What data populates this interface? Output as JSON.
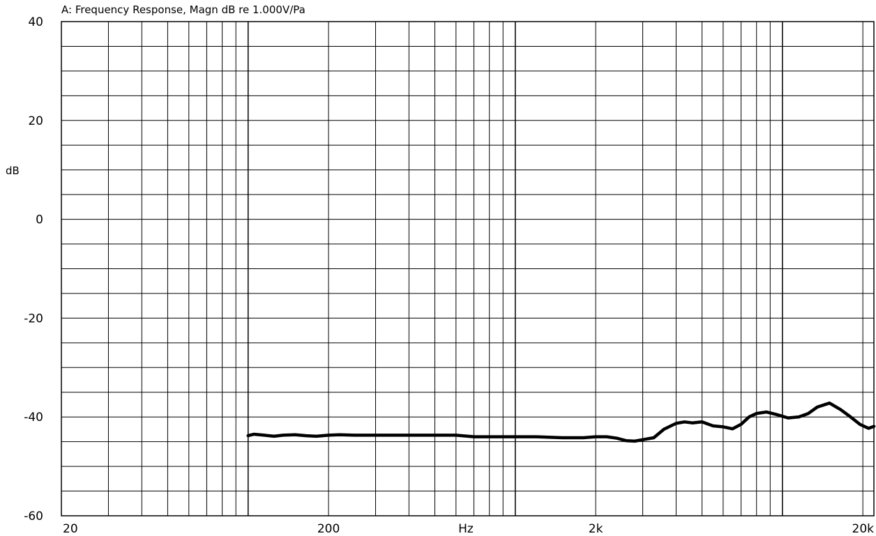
{
  "chart_data": {
    "type": "line",
    "title": "A: Frequency Response, Magn dB re 1.000V/Pa",
    "xlabel": "Hz",
    "ylabel": "dB",
    "x_scale": "log",
    "xlim": [
      20,
      22000
    ],
    "ylim": [
      -60,
      40
    ],
    "x_ticks": [
      {
        "value": 20,
        "label": "20"
      },
      {
        "value": 200,
        "label": "200"
      },
      {
        "value": 2000,
        "label": "2k"
      },
      {
        "value": 20000,
        "label": "20k"
      }
    ],
    "y_ticks": [
      {
        "value": 40,
        "label": "40"
      },
      {
        "value": 20,
        "label": "20"
      },
      {
        "value": 0,
        "label": "0"
      },
      {
        "value": -20,
        "label": "-20"
      },
      {
        "value": -40,
        "label": "-40"
      },
      {
        "value": -60,
        "label": "-60"
      }
    ],
    "grid": true,
    "series": [
      {
        "color": "#000000",
        "x": [
          100,
          105,
          115,
          125,
          135,
          150,
          165,
          180,
          200,
          220,
          250,
          300,
          400,
          500,
          600,
          700,
          800,
          900,
          1000,
          1200,
          1500,
          1800,
          2000,
          2200,
          2400,
          2600,
          2800,
          3000,
          3300,
          3600,
          4000,
          4300,
          4600,
          5000,
          5500,
          6000,
          6500,
          7000,
          7500,
          8000,
          8700,
          9500,
          10500,
          11500,
          12500,
          13500,
          15000,
          16500,
          18000,
          19500,
          21000,
          22000
        ],
        "y": [
          -43.8,
          -43.5,
          -43.7,
          -43.9,
          -43.7,
          -43.6,
          -43.8,
          -43.9,
          -43.7,
          -43.6,
          -43.7,
          -43.7,
          -43.7,
          -43.7,
          -43.7,
          -44.0,
          -44.0,
          -44.0,
          -44.0,
          -44.0,
          -44.2,
          -44.2,
          -44.0,
          -44.0,
          -44.3,
          -44.8,
          -44.9,
          -44.6,
          -44.2,
          -42.5,
          -41.3,
          -41.0,
          -41.2,
          -41.0,
          -41.8,
          -42.0,
          -42.4,
          -41.5,
          -40.0,
          -39.3,
          -39.0,
          -39.5,
          -40.2,
          -40.0,
          -39.3,
          -38.0,
          -37.2,
          -38.5,
          -40.0,
          -41.5,
          -42.3,
          -41.9
        ]
      }
    ]
  }
}
